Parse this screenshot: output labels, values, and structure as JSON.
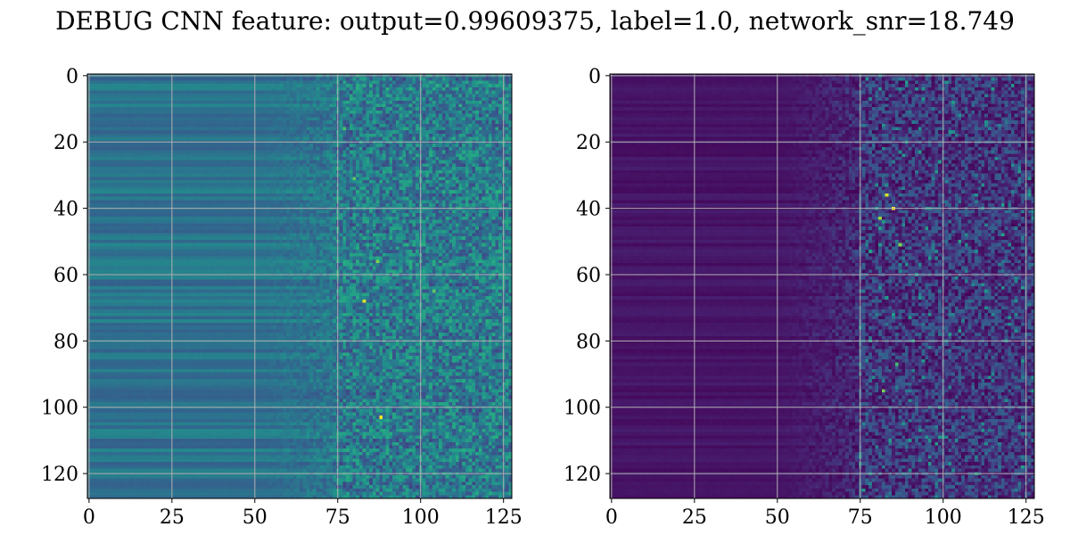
{
  "figure": {
    "title": "DEBUG CNN feature: output=0.99609375, label=1.0, network_snr=18.749"
  },
  "chart_data": [
    {
      "type": "heatmap",
      "colormap": "viridis",
      "grid": true,
      "grid_color": "#b0b0b0",
      "rows": 128,
      "cols": 128,
      "xlim": [
        0,
        127
      ],
      "ylim": [
        127,
        0
      ],
      "xticks": [
        0,
        25,
        50,
        75,
        100,
        125
      ],
      "yticks": [
        0,
        20,
        40,
        60,
        80,
        100,
        120
      ],
      "value_range": [
        0,
        1
      ],
      "profile": {
        "left_region_cols": [
          0,
          50
        ],
        "left_region_level": 0.38,
        "transition_region_cols": [
          50,
          75
        ],
        "noisy_region_cols": [
          75,
          127
        ],
        "noisy_region_level": 0.42
      },
      "bright_spots": [
        {
          "x": 83,
          "y": 68,
          "v": 0.95
        },
        {
          "x": 88,
          "y": 103,
          "v": 1.0
        },
        {
          "x": 87,
          "y": 56,
          "v": 0.8
        },
        {
          "x": 104,
          "y": 65,
          "v": 0.75
        },
        {
          "x": 80,
          "y": 31,
          "v": 0.75
        },
        {
          "x": 77,
          "y": 16,
          "v": 0.72
        }
      ]
    },
    {
      "type": "heatmap",
      "colormap": "viridis",
      "grid": true,
      "grid_color": "#b0b0b0",
      "rows": 128,
      "cols": 128,
      "xlim": [
        0,
        127
      ],
      "ylim": [
        127,
        0
      ],
      "xticks": [
        0,
        25,
        50,
        75,
        100,
        125
      ],
      "yticks": [
        0,
        20,
        40,
        60,
        80,
        100,
        120
      ],
      "value_range": [
        0,
        1
      ],
      "profile": {
        "left_region_cols": [
          0,
          50
        ],
        "left_region_level": 0.07,
        "transition_region_cols": [
          50,
          75
        ],
        "noisy_region_cols": [
          75,
          127
        ],
        "noisy_region_level": 0.17
      },
      "bright_spots": [
        {
          "x": 85,
          "y": 40,
          "v": 1.0
        },
        {
          "x": 83,
          "y": 36,
          "v": 0.95
        },
        {
          "x": 81,
          "y": 43,
          "v": 0.85
        },
        {
          "x": 87,
          "y": 51,
          "v": 0.8
        },
        {
          "x": 82,
          "y": 95,
          "v": 0.8
        },
        {
          "x": 86,
          "y": 87,
          "v": 0.7
        }
      ]
    }
  ]
}
